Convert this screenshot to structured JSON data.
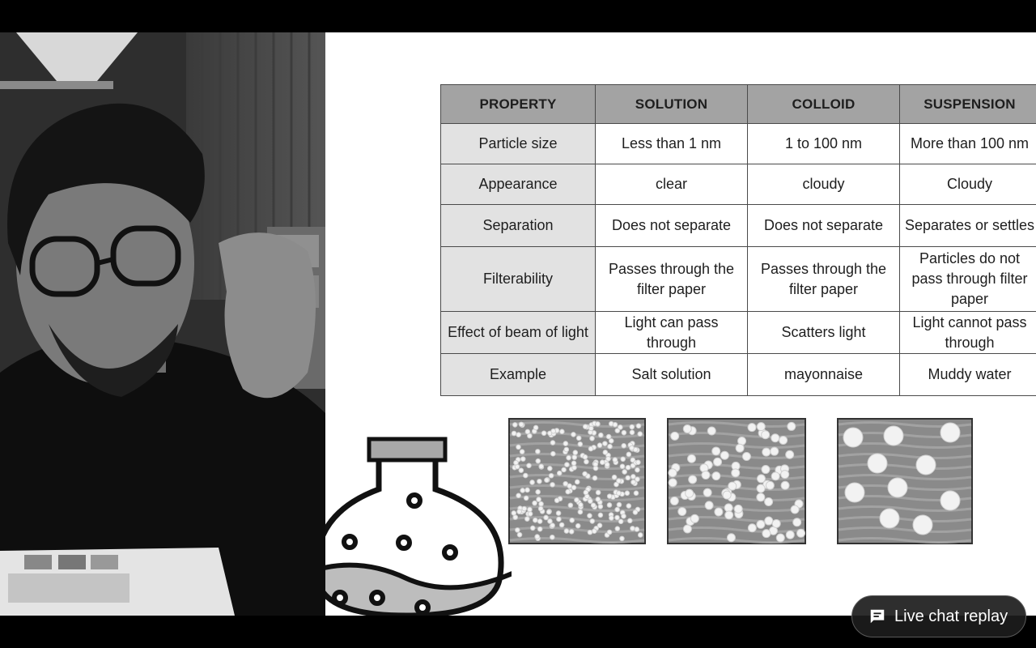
{
  "table": {
    "headers": [
      "PROPERTY",
      "SOLUTION",
      "COLLOID",
      "SUSPENSION"
    ],
    "rows": [
      {
        "property": "Particle size",
        "solution": [
          "Less than 1 nm"
        ],
        "colloid": [
          "1 to 100 nm"
        ],
        "suspension": [
          "More than 100 nm"
        ]
      },
      {
        "property": "Appearance",
        "solution": [
          "clear"
        ],
        "colloid": [
          "cloudy"
        ],
        "suspension": [
          "Cloudy"
        ]
      },
      {
        "property": "Separation",
        "solution": [
          "Does not separate"
        ],
        "colloid": [
          "Does not separate"
        ],
        "suspension": [
          "Separates or settles"
        ]
      },
      {
        "property": "Filterability",
        "solution": [
          "Passes through the",
          "filter paper"
        ],
        "colloid": [
          "Passes through the",
          "filter paper"
        ],
        "suspension": [
          "Particles do not",
          "pass through filter",
          "paper"
        ]
      },
      {
        "property": "Effect of beam of light",
        "solution": [
          "Light can pass",
          "through"
        ],
        "colloid": [
          "Scatters light"
        ],
        "suspension": [
          "Light cannot pass",
          "through"
        ]
      },
      {
        "property": "Example",
        "solution": [
          "Salt solution"
        ],
        "colloid": [
          "mayonnaise"
        ],
        "suspension": [
          "Muddy water"
        ]
      }
    ]
  },
  "icons": {
    "flask": "flask-icon",
    "chat": "live-chat-icon"
  },
  "chat_replay": {
    "label": "Live chat replay"
  },
  "colors": {
    "header_bg": "#a3a3a3",
    "property_bg": "#e2e2e2",
    "chat_bg": "#1c1c1c"
  }
}
